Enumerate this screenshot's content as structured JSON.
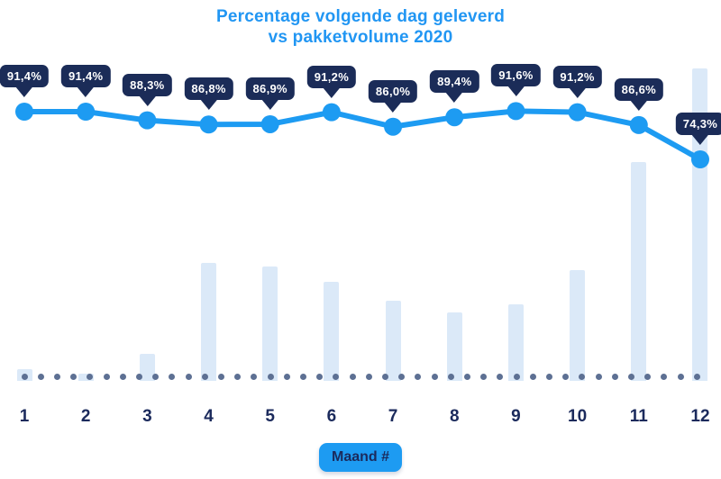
{
  "title": {
    "line1": "Percentage volgende dag geleverd",
    "line2": "vs pakketvolume 2020"
  },
  "xlabel_badge": "Maand #",
  "chart_data": {
    "type": "line+bar combo",
    "title": "Percentage volgende dag geleverd vs pakketvolume 2020",
    "xlabel": "Maand #",
    "ylabel": "",
    "categories": [
      "1",
      "2",
      "3",
      "4",
      "5",
      "6",
      "7",
      "8",
      "9",
      "10",
      "11",
      "12"
    ],
    "series": [
      {
        "name": "Percentage volgende dag geleverd",
        "type": "line",
        "unit": "%",
        "values": [
          91.4,
          91.4,
          88.3,
          86.8,
          86.9,
          91.2,
          86.0,
          89.4,
          91.6,
          91.2,
          86.6,
          74.3
        ],
        "labels": [
          "91,4%",
          "91,4%",
          "88,3%",
          "86,8%",
          "86,9%",
          "91,2%",
          "86,0%",
          "89,4%",
          "91,6%",
          "91,2%",
          "86,6%",
          "74,3%"
        ]
      },
      {
        "name": "Pakketvolume 2020",
        "type": "bar",
        "note": "no numeric axis shown; values are relative bar heights in px",
        "values": [
          13,
          8,
          30,
          131,
          127,
          110,
          89,
          76,
          85,
          123,
          243,
          347
        ]
      }
    ],
    "axis": {
      "x_style": "dotted-line",
      "y_axis_visible": false,
      "grid": false,
      "legend": "none"
    },
    "colors": {
      "accent_blue": "#1d9bf2",
      "title_blue": "#2196f3",
      "navy": "#1b2c58",
      "bar_light_blue": "#dbe9f8",
      "axis_dot": "#5d7093",
      "background": "#ffffff"
    }
  }
}
